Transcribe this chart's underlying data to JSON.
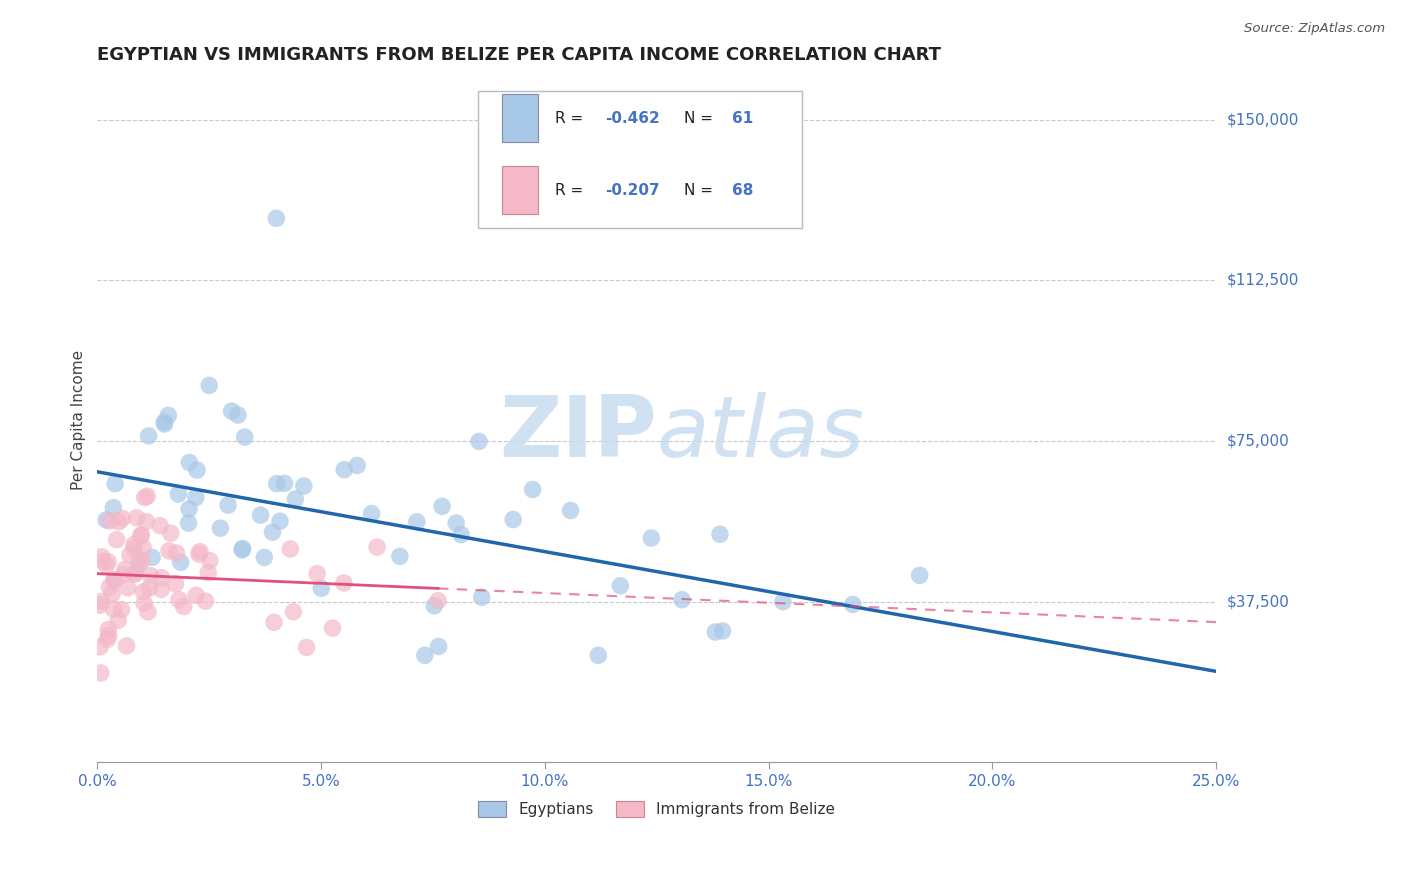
{
  "title": "EGYPTIAN VS IMMIGRANTS FROM BELIZE PER CAPITA INCOME CORRELATION CHART",
  "source": "Source: ZipAtlas.com",
  "ylabel": "Per Capita Income",
  "xlim": [
    0.0,
    0.25
  ],
  "ylim": [
    0,
    160000
  ],
  "legend_label1": "Egyptians",
  "legend_label2": "Immigrants from Belize",
  "blue_color": "#a8c8e8",
  "pink_color": "#f4b8c8",
  "blue_line_color": "#2166ac",
  "pink_line_color": "#e05080",
  "background_color": "#ffffff",
  "grid_color": "#c8c8d0",
  "tick_color": "#4472c4",
  "watermark_color": "#c8ddf0",
  "title_color": "#222222",
  "label_color": "#444444",
  "ytick_vals": [
    37500,
    75000,
    112500,
    150000
  ],
  "ytick_labels": [
    "$37,500",
    "$75,000",
    "$112,500",
    "$150,000"
  ],
  "xtick_positions": [
    0.0,
    0.05,
    0.1,
    0.15,
    0.2,
    0.25
  ],
  "xtick_labels": [
    "0.0%",
    "5.0%",
    "10.0%",
    "15.0%",
    "20.0%",
    "25.0%"
  ]
}
